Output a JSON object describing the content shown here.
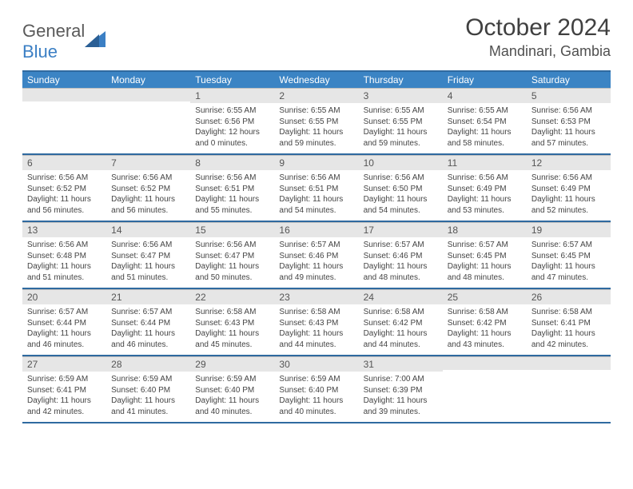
{
  "header": {
    "logo_general": "General",
    "logo_blue": "Blue",
    "month": "October 2024",
    "location": "Mandinari, Gambia"
  },
  "colors": {
    "header_bg": "#3b84c4",
    "header_border": "#2f6aa0",
    "daynum_bg": "#e6e6e6"
  },
  "day_names": [
    "Sunday",
    "Monday",
    "Tuesday",
    "Wednesday",
    "Thursday",
    "Friday",
    "Saturday"
  ],
  "weeks": [
    [
      {
        "n": "",
        "sr": "",
        "ss": "",
        "dl": ""
      },
      {
        "n": "",
        "sr": "",
        "ss": "",
        "dl": ""
      },
      {
        "n": "1",
        "sr": "Sunrise: 6:55 AM",
        "ss": "Sunset: 6:56 PM",
        "dl": "Daylight: 12 hours and 0 minutes."
      },
      {
        "n": "2",
        "sr": "Sunrise: 6:55 AM",
        "ss": "Sunset: 6:55 PM",
        "dl": "Daylight: 11 hours and 59 minutes."
      },
      {
        "n": "3",
        "sr": "Sunrise: 6:55 AM",
        "ss": "Sunset: 6:55 PM",
        "dl": "Daylight: 11 hours and 59 minutes."
      },
      {
        "n": "4",
        "sr": "Sunrise: 6:55 AM",
        "ss": "Sunset: 6:54 PM",
        "dl": "Daylight: 11 hours and 58 minutes."
      },
      {
        "n": "5",
        "sr": "Sunrise: 6:56 AM",
        "ss": "Sunset: 6:53 PM",
        "dl": "Daylight: 11 hours and 57 minutes."
      }
    ],
    [
      {
        "n": "6",
        "sr": "Sunrise: 6:56 AM",
        "ss": "Sunset: 6:52 PM",
        "dl": "Daylight: 11 hours and 56 minutes."
      },
      {
        "n": "7",
        "sr": "Sunrise: 6:56 AM",
        "ss": "Sunset: 6:52 PM",
        "dl": "Daylight: 11 hours and 56 minutes."
      },
      {
        "n": "8",
        "sr": "Sunrise: 6:56 AM",
        "ss": "Sunset: 6:51 PM",
        "dl": "Daylight: 11 hours and 55 minutes."
      },
      {
        "n": "9",
        "sr": "Sunrise: 6:56 AM",
        "ss": "Sunset: 6:51 PM",
        "dl": "Daylight: 11 hours and 54 minutes."
      },
      {
        "n": "10",
        "sr": "Sunrise: 6:56 AM",
        "ss": "Sunset: 6:50 PM",
        "dl": "Daylight: 11 hours and 54 minutes."
      },
      {
        "n": "11",
        "sr": "Sunrise: 6:56 AM",
        "ss": "Sunset: 6:49 PM",
        "dl": "Daylight: 11 hours and 53 minutes."
      },
      {
        "n": "12",
        "sr": "Sunrise: 6:56 AM",
        "ss": "Sunset: 6:49 PM",
        "dl": "Daylight: 11 hours and 52 minutes."
      }
    ],
    [
      {
        "n": "13",
        "sr": "Sunrise: 6:56 AM",
        "ss": "Sunset: 6:48 PM",
        "dl": "Daylight: 11 hours and 51 minutes."
      },
      {
        "n": "14",
        "sr": "Sunrise: 6:56 AM",
        "ss": "Sunset: 6:47 PM",
        "dl": "Daylight: 11 hours and 51 minutes."
      },
      {
        "n": "15",
        "sr": "Sunrise: 6:56 AM",
        "ss": "Sunset: 6:47 PM",
        "dl": "Daylight: 11 hours and 50 minutes."
      },
      {
        "n": "16",
        "sr": "Sunrise: 6:57 AM",
        "ss": "Sunset: 6:46 PM",
        "dl": "Daylight: 11 hours and 49 minutes."
      },
      {
        "n": "17",
        "sr": "Sunrise: 6:57 AM",
        "ss": "Sunset: 6:46 PM",
        "dl": "Daylight: 11 hours and 48 minutes."
      },
      {
        "n": "18",
        "sr": "Sunrise: 6:57 AM",
        "ss": "Sunset: 6:45 PM",
        "dl": "Daylight: 11 hours and 48 minutes."
      },
      {
        "n": "19",
        "sr": "Sunrise: 6:57 AM",
        "ss": "Sunset: 6:45 PM",
        "dl": "Daylight: 11 hours and 47 minutes."
      }
    ],
    [
      {
        "n": "20",
        "sr": "Sunrise: 6:57 AM",
        "ss": "Sunset: 6:44 PM",
        "dl": "Daylight: 11 hours and 46 minutes."
      },
      {
        "n": "21",
        "sr": "Sunrise: 6:57 AM",
        "ss": "Sunset: 6:44 PM",
        "dl": "Daylight: 11 hours and 46 minutes."
      },
      {
        "n": "22",
        "sr": "Sunrise: 6:58 AM",
        "ss": "Sunset: 6:43 PM",
        "dl": "Daylight: 11 hours and 45 minutes."
      },
      {
        "n": "23",
        "sr": "Sunrise: 6:58 AM",
        "ss": "Sunset: 6:43 PM",
        "dl": "Daylight: 11 hours and 44 minutes."
      },
      {
        "n": "24",
        "sr": "Sunrise: 6:58 AM",
        "ss": "Sunset: 6:42 PM",
        "dl": "Daylight: 11 hours and 44 minutes."
      },
      {
        "n": "25",
        "sr": "Sunrise: 6:58 AM",
        "ss": "Sunset: 6:42 PM",
        "dl": "Daylight: 11 hours and 43 minutes."
      },
      {
        "n": "26",
        "sr": "Sunrise: 6:58 AM",
        "ss": "Sunset: 6:41 PM",
        "dl": "Daylight: 11 hours and 42 minutes."
      }
    ],
    [
      {
        "n": "27",
        "sr": "Sunrise: 6:59 AM",
        "ss": "Sunset: 6:41 PM",
        "dl": "Daylight: 11 hours and 42 minutes."
      },
      {
        "n": "28",
        "sr": "Sunrise: 6:59 AM",
        "ss": "Sunset: 6:40 PM",
        "dl": "Daylight: 11 hours and 41 minutes."
      },
      {
        "n": "29",
        "sr": "Sunrise: 6:59 AM",
        "ss": "Sunset: 6:40 PM",
        "dl": "Daylight: 11 hours and 40 minutes."
      },
      {
        "n": "30",
        "sr": "Sunrise: 6:59 AM",
        "ss": "Sunset: 6:40 PM",
        "dl": "Daylight: 11 hours and 40 minutes."
      },
      {
        "n": "31",
        "sr": "Sunrise: 7:00 AM",
        "ss": "Sunset: 6:39 PM",
        "dl": "Daylight: 11 hours and 39 minutes."
      },
      {
        "n": "",
        "sr": "",
        "ss": "",
        "dl": ""
      },
      {
        "n": "",
        "sr": "",
        "ss": "",
        "dl": ""
      }
    ]
  ]
}
